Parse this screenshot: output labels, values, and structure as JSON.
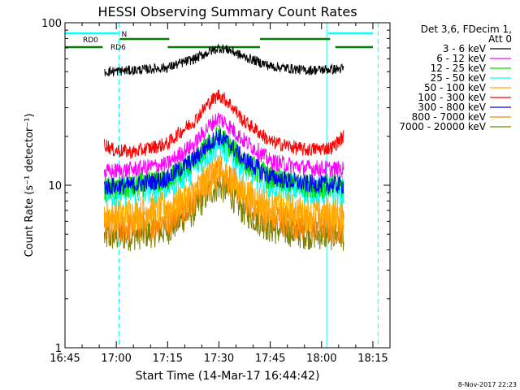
{
  "chart_data": {
    "type": "line",
    "title": "HESSI Observing Summary Count Rates",
    "xlabel": "Start Time (14-Mar-17 16:44:42)",
    "ylabel": "Count Rate (s⁻¹ detector⁻¹)",
    "x_range_min": [
      0,
      95
    ],
    "x_ticks": [
      {
        "min": 0,
        "label": "16:45"
      },
      {
        "min": 15,
        "label": "17:00"
      },
      {
        "min": 30,
        "label": "17:15"
      },
      {
        "min": 45,
        "label": "17:30"
      },
      {
        "min": 60,
        "label": "17:45"
      },
      {
        "min": 75,
        "label": "18:00"
      },
      {
        "min": 90,
        "label": "18:15"
      }
    ],
    "y_scale": "log",
    "y_range": [
      1,
      100
    ],
    "y_ticks": [
      {
        "value": 1,
        "label": "1"
      },
      {
        "value": 10,
        "label": "10"
      },
      {
        "value": 100,
        "label": "100"
      }
    ],
    "legend_header_1": "Det 3,6, FDecim 1,",
    "legend_header_2": "Att 0",
    "legend_placement": "right",
    "series": [
      {
        "name": "3 - 6 keV",
        "color": "#000000",
        "start_min": 11.5,
        "end_min": 81.5,
        "x": [
          11.5,
          20,
          30,
          38,
          42,
          45,
          48,
          52,
          60,
          70,
          81.5
        ],
        "y": [
          50,
          51,
          53,
          60,
          66,
          70,
          68,
          62,
          54,
          51,
          52
        ]
      },
      {
        "name": "6 - 12 keV",
        "color": "#ff00ff",
        "start_min": 11.5,
        "end_min": 81.5,
        "x": [
          11.5,
          20,
          30,
          38,
          42,
          45,
          48,
          52,
          60,
          70,
          81.5
        ],
        "y": [
          12,
          12.5,
          13.5,
          18,
          23,
          26,
          23,
          19,
          14,
          12.8,
          12.5
        ]
      },
      {
        "name": "12 - 25 keV",
        "color": "#00dd00",
        "start_min": 11.5,
        "end_min": 81.5,
        "x": [
          11.5,
          20,
          30,
          38,
          42,
          45,
          48,
          52,
          60,
          70,
          81.5
        ],
        "y": [
          9.5,
          9.8,
          10.8,
          14,
          17.5,
          20,
          17.5,
          14,
          11,
          10,
          9.8
        ]
      },
      {
        "name": "25 - 50 keV",
        "color": "#00ffff",
        "start_min": 11.5,
        "end_min": 81.5,
        "x": [
          11.5,
          20,
          30,
          38,
          42,
          45,
          48,
          52,
          60,
          70,
          81.5
        ],
        "y": [
          9,
          9.2,
          10,
          13,
          16,
          18,
          16,
          13,
          10.3,
          9.4,
          9.2
        ]
      },
      {
        "name": "50 - 100 keV",
        "color": "#ffaa00",
        "start_min": 11.5,
        "end_min": 81.5,
        "x": [
          11.5,
          20,
          30,
          38,
          42,
          45,
          48,
          52,
          60,
          70,
          81.5
        ],
        "y": [
          6.5,
          6.7,
          7.3,
          9,
          11,
          12,
          11,
          9,
          7.4,
          6.8,
          6.7
        ]
      },
      {
        "name": "100 - 300 keV",
        "color": "#ff0000",
        "start_min": 11.5,
        "end_min": 81.5,
        "x": [
          11.5,
          14,
          20,
          30,
          38,
          42,
          45,
          48,
          52,
          60,
          70,
          78,
          81.5
        ],
        "y": [
          18,
          16.5,
          16,
          18,
          25,
          32,
          36,
          32,
          25,
          18.5,
          16.5,
          17,
          20
        ]
      },
      {
        "name": "300 - 800 keV",
        "color": "#0000ff",
        "start_min": 11.5,
        "end_min": 81.5,
        "x": [
          11.5,
          20,
          30,
          38,
          42,
          45,
          48,
          52,
          60,
          70,
          81.5
        ],
        "y": [
          9.8,
          10,
          11,
          14.5,
          18,
          20,
          18,
          14.5,
          11.2,
          10.2,
          10
        ]
      },
      {
        "name": "800 - 7000 keV",
        "color": "#ff8800",
        "start_min": 11.5,
        "end_min": 81.5,
        "x": [
          11.5,
          20,
          30,
          38,
          42,
          45,
          48,
          52,
          60,
          70,
          81.5
        ],
        "y": [
          5.5,
          5.6,
          6.2,
          8.5,
          11,
          12.5,
          11,
          8.5,
          6.4,
          5.7,
          5.6
        ]
      },
      {
        "name": "7000 - 20000 keV",
        "color": "#808000",
        "start_min": 11.5,
        "end_min": 81.5,
        "x": [
          11.5,
          20,
          30,
          38,
          42,
          45,
          48,
          52,
          60,
          70,
          81.5
        ],
        "y": [
          4.8,
          4.9,
          5.3,
          7,
          9,
          10,
          9,
          7,
          5.4,
          5,
          4.9
        ]
      }
    ],
    "flag_bars": [
      {
        "label": "N",
        "color": "#00ffff",
        "level": 1,
        "ranges": [
          [
            0,
            15.5
          ],
          [
            77,
            90
          ]
        ]
      },
      {
        "label": "RD0",
        "color": "#007f00",
        "level": 2,
        "ranges": [
          [
            16,
            30.5
          ],
          [
            57,
            77.5
          ]
        ]
      },
      {
        "label": "RD6",
        "color": "#007f00",
        "level": 3,
        "ranges": [
          [
            0,
            11
          ],
          [
            30,
            57
          ],
          [
            79,
            90
          ]
        ]
      }
    ],
    "vlines_solid": [
      {
        "min": 0,
        "color": "#00ffff"
      },
      {
        "min": 76.5,
        "color": "#00ffff"
      }
    ],
    "vlines_dashed": [
      {
        "min": 15.8,
        "color": "#00ffff"
      },
      {
        "min": 91.5,
        "color": "#00ffff"
      }
    ]
  },
  "footer": {
    "date": "8-Nov-2017 22:23"
  }
}
